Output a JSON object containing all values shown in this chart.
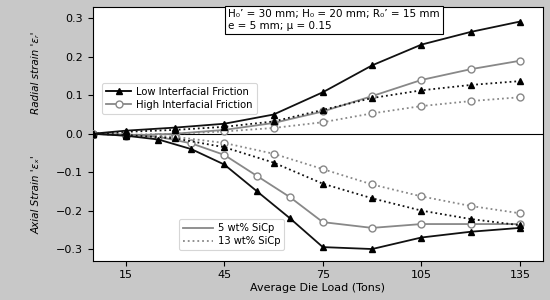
{
  "xlabel": "Average Die Load (Tons)",
  "ylabel_top": "Radial strain 'εᵣ'",
  "ylabel_bottom": "Axial Strain 'εₓ'",
  "x_ticks": [
    15,
    45,
    75,
    105,
    135
  ],
  "yticks": [
    -0.3,
    -0.2,
    -0.1,
    0.0,
    0.1,
    0.2,
    0.3
  ],
  "ylim": [
    -0.33,
    0.33
  ],
  "x_range": [
    5,
    142
  ],
  "background_color": "#c8c8c8",
  "plot_bg": "#ffffff",
  "radial_low_5": {
    "x": [
      5,
      15,
      30,
      45,
      60,
      75,
      90,
      105,
      120,
      135
    ],
    "y": [
      0.0,
      0.008,
      0.016,
      0.026,
      0.05,
      0.108,
      0.178,
      0.232,
      0.265,
      0.292
    ]
  },
  "radial_low_13": {
    "x": [
      5,
      15,
      30,
      45,
      60,
      75,
      90,
      105,
      120,
      135
    ],
    "y": [
      0.0,
      0.005,
      0.01,
      0.018,
      0.032,
      0.062,
      0.093,
      0.113,
      0.127,
      0.137
    ]
  },
  "radial_high_5": {
    "x": [
      5,
      15,
      30,
      45,
      60,
      75,
      90,
      105,
      120,
      135
    ],
    "y": [
      0.0,
      -0.005,
      0.0,
      0.01,
      0.028,
      0.058,
      0.098,
      0.14,
      0.168,
      0.19
    ]
  },
  "radial_high_13": {
    "x": [
      5,
      15,
      30,
      45,
      60,
      75,
      90,
      105,
      120,
      135
    ],
    "y": [
      0.0,
      -0.003,
      0.0,
      0.006,
      0.015,
      0.03,
      0.053,
      0.072,
      0.085,
      0.095
    ]
  },
  "axial_low_5": {
    "x": [
      5,
      15,
      25,
      35,
      45,
      55,
      65,
      75,
      90,
      105,
      120,
      135
    ],
    "y": [
      0.0,
      -0.005,
      -0.015,
      -0.04,
      -0.08,
      -0.15,
      -0.22,
      -0.295,
      -0.3,
      -0.27,
      -0.255,
      -0.245
    ]
  },
  "axial_low_13": {
    "x": [
      5,
      15,
      30,
      45,
      60,
      75,
      90,
      105,
      120,
      135
    ],
    "y": [
      0.0,
      -0.003,
      -0.012,
      -0.035,
      -0.075,
      -0.13,
      -0.168,
      -0.2,
      -0.222,
      -0.238
    ]
  },
  "axial_high_5": {
    "x": [
      5,
      15,
      25,
      35,
      45,
      55,
      65,
      75,
      90,
      105,
      120,
      135
    ],
    "y": [
      0.0,
      -0.002,
      -0.008,
      -0.025,
      -0.055,
      -0.11,
      -0.165,
      -0.23,
      -0.245,
      -0.235,
      -0.235,
      -0.235
    ]
  },
  "axial_high_13": {
    "x": [
      5,
      15,
      30,
      45,
      60,
      75,
      90,
      105,
      120,
      135
    ],
    "y": [
      0.0,
      -0.002,
      -0.008,
      -0.024,
      -0.052,
      -0.092,
      -0.132,
      -0.163,
      -0.188,
      -0.207
    ]
  },
  "color_low": "#111111",
  "color_high": "#888888",
  "linestyle_5": "-",
  "linestyle_13": ":",
  "linewidth": 1.3,
  "markersize": 5
}
